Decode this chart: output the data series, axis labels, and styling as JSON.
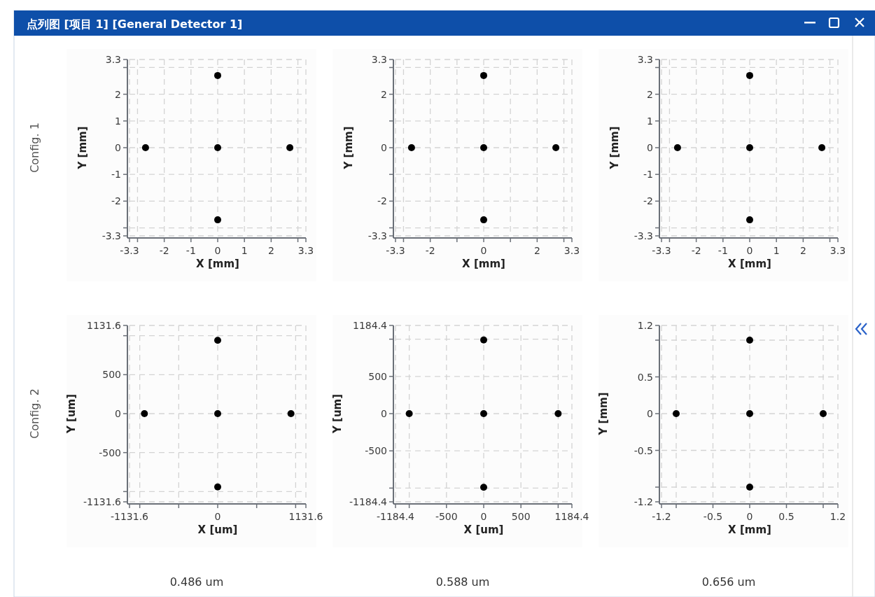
{
  "chart_data": [
    {
      "type": "scatter",
      "title": "点列图 [项目 1] [General Detector 1]",
      "annotations": [
        "Config. 1"
      ],
      "xlabel": "X [mm]",
      "ylabel": "Y [mm]",
      "x": [
        0,
        -2.7,
        0,
        2.7,
        0
      ],
      "values": [
        2.7,
        0,
        0,
        0,
        -2.7
      ],
      "color": "#000000",
      "marker": "circle",
      "grid": true,
      "xlim": [
        -3.3,
        3.3
      ],
      "ylim": [
        -3.3,
        3.3
      ],
      "xticks": [
        -3.3,
        {
          "value": -3,
          "label": null
        },
        -2,
        -1,
        0,
        1,
        2,
        {
          "value": 3,
          "label": null
        },
        3.3
      ],
      "yticks": [
        -3.3,
        {
          "value": -3,
          "label": null
        },
        -2,
        -1,
        0,
        1,
        2,
        {
          "value": 3,
          "label": null
        },
        3.3
      ]
    },
    {
      "type": "scatter",
      "xlabel": "X [mm]",
      "ylabel": "Y [mm]",
      "x": [
        0,
        -2.7,
        0,
        2.7,
        0
      ],
      "values": [
        2.7,
        0,
        0,
        0,
        -2.7
      ],
      "color": "#000000",
      "marker": "circle",
      "grid": true,
      "xlim": [
        -3.3,
        3.3
      ],
      "ylim": [
        -3.3,
        3.3
      ],
      "xticks": [
        -3.3,
        {
          "value": -3,
          "label": null
        },
        -2,
        {
          "value": -1,
          "label": null
        },
        0,
        {
          "value": 1,
          "label": null
        },
        2,
        {
          "value": 3,
          "label": null
        },
        3.3
      ],
      "yticks": [
        -3.3,
        {
          "value": -3,
          "label": null
        },
        -2,
        {
          "value": -1,
          "label": null
        },
        0,
        {
          "value": 1,
          "label": null
        },
        2,
        {
          "value": 3,
          "label": null
        },
        3.3
      ]
    },
    {
      "type": "scatter",
      "xlabel": "X [mm]",
      "ylabel": "Y [mm]",
      "x": [
        0,
        -2.7,
        0,
        2.7,
        0
      ],
      "values": [
        2.7,
        0,
        0,
        0,
        -2.7
      ],
      "color": "#000000",
      "marker": "circle",
      "grid": true,
      "xlim": [
        -3.3,
        3.3
      ],
      "ylim": [
        -3.3,
        3.3
      ],
      "xticks": [
        -3.3,
        {
          "value": -3,
          "label": null
        },
        -2,
        -1,
        0,
        1,
        2,
        {
          "value": 3,
          "label": null
        },
        3.3
      ],
      "yticks": [
        -3.3,
        {
          "value": -3,
          "label": null
        },
        -2,
        -1,
        0,
        1,
        2,
        {
          "value": 3,
          "label": null
        },
        3.3
      ]
    },
    {
      "type": "scatter",
      "subtitle": "0.486 um",
      "annotations": [
        "Config. 2"
      ],
      "xlabel": "X [um]",
      "ylabel": "Y [um]",
      "x": [
        0,
        -940,
        0,
        940,
        0
      ],
      "values": [
        940,
        0,
        0,
        0,
        -940
      ],
      "color": "#000000",
      "marker": "circle",
      "grid": true,
      "xlim": [
        -1131.6,
        1131.6
      ],
      "ylim": [
        -1131.6,
        1131.6
      ],
      "xticks": [
        -1131.6,
        {
          "value": -1000,
          "label": null
        },
        {
          "value": -500,
          "label": null
        },
        0,
        {
          "value": 500,
          "label": null
        },
        {
          "value": 1000,
          "label": null
        },
        1131.6
      ],
      "yticks": [
        -1131.6,
        {
          "value": -1000,
          "label": null
        },
        -500,
        0,
        500,
        {
          "value": 1000,
          "label": null
        },
        1131.6
      ]
    },
    {
      "type": "scatter",
      "subtitle": "0.588 um",
      "xlabel": "X [um]",
      "ylabel": "Y [um]",
      "x": [
        0,
        -1000,
        0,
        1000,
        0
      ],
      "values": [
        990,
        0,
        0,
        0,
        -990
      ],
      "color": "#000000",
      "marker": "circle",
      "grid": true,
      "xlim": [
        -1184.4,
        1184.4
      ],
      "ylim": [
        -1184.4,
        1184.4
      ],
      "xticks": [
        -1184.4,
        {
          "value": -1000,
          "label": null
        },
        -500,
        0,
        500,
        {
          "value": 1000,
          "label": null
        },
        1184.4
      ],
      "yticks": [
        -1184.4,
        {
          "value": -1000,
          "label": null
        },
        -500,
        0,
        500,
        {
          "value": 1000,
          "label": null
        },
        1184.4
      ]
    },
    {
      "type": "scatter",
      "subtitle": "0.656 um",
      "xlabel": "X [mm]",
      "ylabel": "Y [mm]",
      "x": [
        0,
        -1,
        0,
        1,
        0
      ],
      "values": [
        1,
        0,
        0,
        0,
        -1
      ],
      "color": "#000000",
      "marker": "circle",
      "grid": true,
      "xlim": [
        -1.2,
        1.2
      ],
      "ylim": [
        -1.2,
        1.2
      ],
      "xticks": [
        -1.2,
        {
          "value": -1,
          "label": null
        },
        -0.5,
        0,
        0.5,
        {
          "value": 1,
          "label": null
        },
        1.2
      ],
      "yticks": [
        -1.2,
        {
          "value": -1,
          "label": null
        },
        -0.5,
        0,
        0.5,
        {
          "value": 1,
          "label": null
        },
        1.2
      ]
    }
  ]
}
